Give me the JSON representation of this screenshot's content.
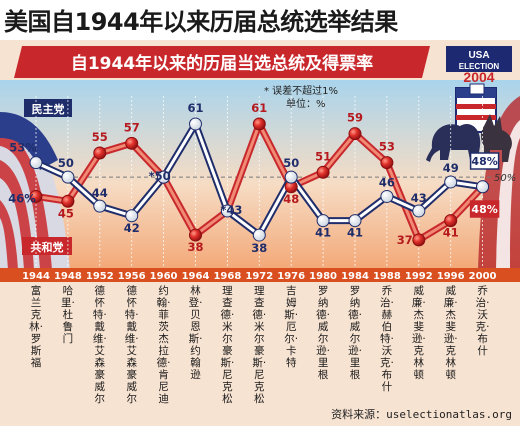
{
  "page_title": "美国自1944年以来历届总统选举结果",
  "chart_data": {
    "type": "line",
    "title": "自1944年以来的历届当选总统及得票率",
    "note": "* 误差不超过1%",
    "unit": "单位：%",
    "x": [
      "1944",
      "1948",
      "1952",
      "1956",
      "1960",
      "1964",
      "1968",
      "1972",
      "1976",
      "1980",
      "1984",
      "1988",
      "1992",
      "1996",
      "2000"
    ],
    "ylim": [
      35,
      63
    ],
    "series": [
      {
        "name": "民主党",
        "color": "#ffffff",
        "stroke": "#1f2d6b",
        "values": [
          53,
          50,
          44,
          42,
          50,
          61,
          43,
          38,
          50,
          41,
          41,
          46,
          43,
          49,
          48
        ],
        "labels": [
          "53%",
          "50",
          "44",
          "42",
          "*50",
          "61",
          "*43",
          "38",
          "50",
          "41",
          "41",
          "46",
          "43",
          "49",
          "48%"
        ]
      },
      {
        "name": "共和党",
        "color": "#d8262c",
        "stroke": "#d8262c",
        "values": [
          46,
          45,
          55,
          57,
          50,
          38,
          43,
          61,
          48,
          51,
          59,
          53,
          37,
          41,
          48
        ],
        "labels": [
          "46%",
          "45",
          "55",
          "57",
          "",
          "38",
          "",
          "61",
          "48",
          "51",
          "59",
          "53",
          "37",
          "41",
          "48%"
        ]
      }
    ],
    "reference_line": {
      "value": 50,
      "label": "50%"
    },
    "presidents": [
      "富兰克林·罗斯福",
      "哈里·杜鲁门",
      "德怀特·戴维·艾森豪威尔",
      "德怀特·戴维·艾森豪威尔",
      "约翰·菲茨杰拉德·肯尼迪",
      "林登·贝恩斯·约翰逊",
      "理查德·米尔豪斯·尼克松",
      "理查德·米尔豪斯·尼克松",
      "吉姆斯·厄尔·卡特",
      "罗纳德·威尔逊·里根",
      "罗纳德·威尔逊·里根",
      "乔治·赫伯特·沃克·布什",
      "威廉·杰斐逊·克林顿",
      "威廉·杰斐逊·克林顿",
      "乔治·沃克·布什"
    ]
  },
  "badge": {
    "line1": "USA",
    "line2": "ELECTION",
    "line3": "2004"
  },
  "source_prefix": "资料来源：",
  "source_url": "uselectionatlas.org"
}
